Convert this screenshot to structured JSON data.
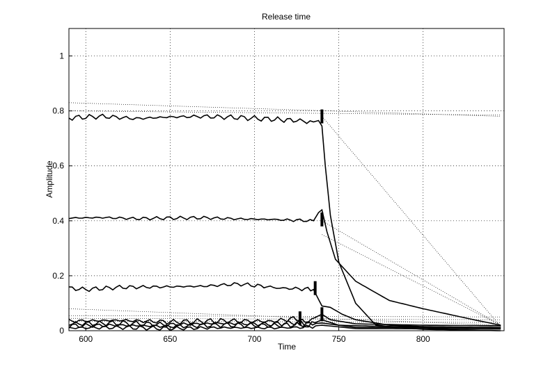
{
  "chart_data": {
    "type": "line",
    "title": "Release time",
    "xlabel": "Time",
    "ylabel": "Amplitude",
    "xlim": [
      590,
      848
    ],
    "ylim": [
      0,
      1.1
    ],
    "xticks": [
      600,
      650,
      700,
      750,
      800
    ],
    "yticks": [
      0,
      0.2,
      0.4,
      0.6,
      0.8,
      1
    ],
    "xtick_labels": [
      "600",
      "650",
      "700",
      "750",
      "800"
    ],
    "ytick_labels": [
      "0",
      "0.2",
      "0.4",
      "0.6",
      "0.8",
      "1"
    ],
    "grid": true,
    "series": [
      {
        "style": "solid",
        "level": 0.775,
        "noise": 0.006,
        "drop_start": 738,
        "drop_end": 772,
        "tail": 0.0,
        "x": [
          590,
          610,
          630,
          650,
          670,
          690,
          710,
          725,
          735,
          738,
          740,
          742,
          745,
          750,
          760,
          772,
          800,
          846
        ],
        "y": [
          0.775,
          0.78,
          0.772,
          0.778,
          0.78,
          0.776,
          0.77,
          0.765,
          0.76,
          0.765,
          0.745,
          0.6,
          0.42,
          0.25,
          0.1,
          0.02,
          0.005,
          0.0
        ]
      },
      {
        "style": "solid",
        "level": 0.41,
        "noise": 0.004,
        "x": [
          590,
          610,
          630,
          650,
          670,
          690,
          710,
          725,
          735,
          738,
          740,
          743,
          748,
          760,
          780,
          800,
          830,
          846
        ],
        "y": [
          0.41,
          0.412,
          0.408,
          0.41,
          0.411,
          0.407,
          0.405,
          0.402,
          0.4,
          0.43,
          0.44,
          0.36,
          0.26,
          0.18,
          0.11,
          0.08,
          0.04,
          0.02
        ]
      },
      {
        "style": "solid",
        "level": 0.155,
        "noise": 0.005,
        "x": [
          590,
          600,
          620,
          650,
          670,
          690,
          700,
          715,
          730,
          735,
          740,
          745,
          752,
          760,
          780,
          800,
          846
        ],
        "y": [
          0.155,
          0.15,
          0.158,
          0.16,
          0.162,
          0.17,
          0.165,
          0.155,
          0.152,
          0.15,
          0.09,
          0.085,
          0.06,
          0.04,
          0.02,
          0.015,
          0.01
        ]
      },
      {
        "style": "solid",
        "level": 0.035,
        "noise": 0.006,
        "x": [
          590,
          620,
          650,
          680,
          710,
          725,
          730,
          740,
          745,
          760,
          800,
          846
        ],
        "y": [
          0.035,
          0.038,
          0.032,
          0.036,
          0.034,
          0.045,
          0.03,
          0.06,
          0.04,
          0.025,
          0.02,
          0.018
        ]
      },
      {
        "style": "solid",
        "level": 0.025,
        "noise": 0.006,
        "x": [
          590,
          620,
          650,
          680,
          710,
          726,
          732,
          740,
          750,
          780,
          846
        ],
        "y": [
          0.025,
          0.028,
          0.022,
          0.027,
          0.024,
          0.03,
          0.018,
          0.04,
          0.02,
          0.015,
          0.012
        ]
      },
      {
        "style": "solid",
        "level": 0.018,
        "noise": 0.006,
        "x": [
          590,
          620,
          650,
          680,
          710,
          727,
          740,
          760,
          846
        ],
        "y": [
          0.018,
          0.02,
          0.016,
          0.021,
          0.019,
          0.022,
          0.028,
          0.012,
          0.01
        ]
      },
      {
        "style": "solid",
        "level": 0.01,
        "noise": 0.005,
        "x": [
          590,
          620,
          650,
          680,
          710,
          727,
          740,
          760,
          846
        ],
        "y": [
          0.01,
          0.012,
          0.008,
          0.011,
          0.01,
          0.012,
          0.02,
          0.008,
          0.006
        ]
      },
      {
        "style": "dotted",
        "x": [
          590,
          846
        ],
        "y": [
          0.83,
          0.78
        ]
      },
      {
        "style": "dotted",
        "x": [
          590,
          846
        ],
        "y": [
          0.8,
          0.785
        ]
      },
      {
        "style": "dotted",
        "x": [
          740,
          846
        ],
        "y": [
          0.78,
          0.015
        ]
      },
      {
        "style": "dotted",
        "x": [
          740,
          846
        ],
        "y": [
          0.4,
          0.02
        ]
      },
      {
        "style": "dotted",
        "x": [
          740,
          846
        ],
        "y": [
          0.35,
          0.02
        ]
      },
      {
        "style": "dotted",
        "x": [
          590,
          846
        ],
        "y": [
          0.055,
          0.05
        ]
      },
      {
        "style": "dotted",
        "x": [
          590,
          846
        ],
        "y": [
          0.045,
          0.04
        ]
      },
      {
        "style": "dotted",
        "x": [
          590,
          846
        ],
        "y": [
          0.035,
          0.03
        ]
      },
      {
        "style": "dotted",
        "x": [
          590,
          846
        ],
        "y": [
          0.08,
          0.02
        ]
      }
    ],
    "markers": [
      {
        "x": 740,
        "y": 0.78
      },
      {
        "x": 740,
        "y": 0.405
      },
      {
        "x": 736,
        "y": 0.155
      },
      {
        "x": 727,
        "y": 0.045
      },
      {
        "x": 740,
        "y": 0.06
      }
    ]
  }
}
